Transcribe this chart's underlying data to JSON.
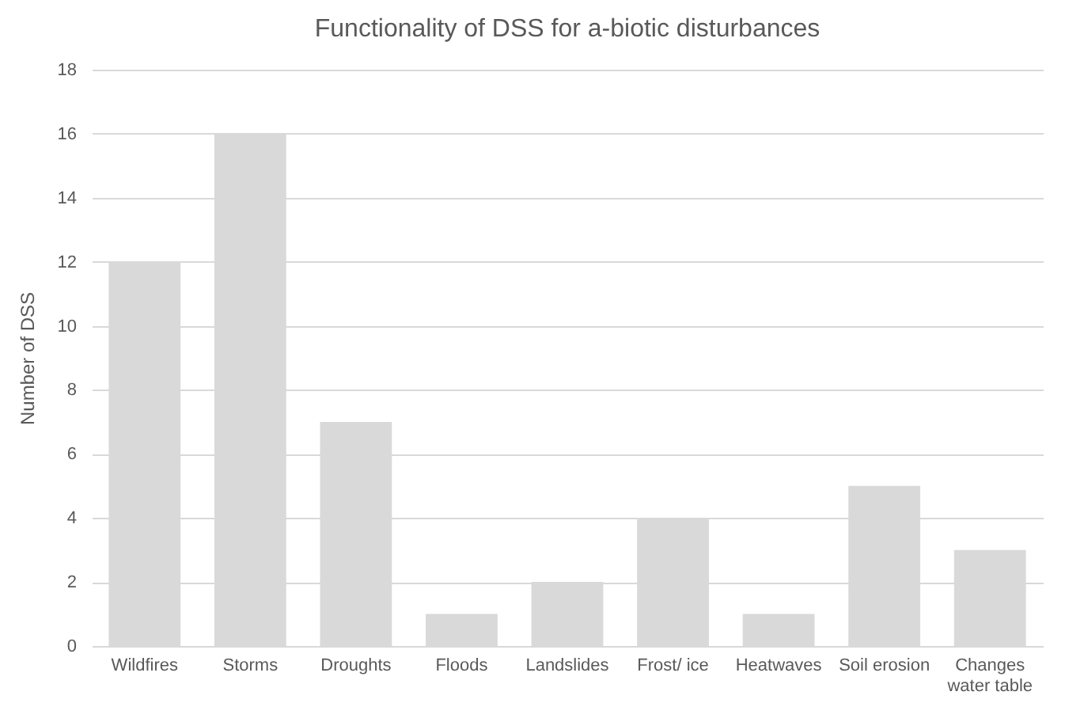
{
  "chart_data": {
    "type": "bar",
    "title": "Functionality of DSS for a-biotic disturbances",
    "ylabel": "Number of DSS",
    "categories": [
      "Wildfires",
      "Storms",
      "Droughts",
      "Floods",
      "Landslides",
      "Frost/ ice",
      "Heatwaves",
      "Soil erosion",
      "Changes water table"
    ],
    "values": [
      12,
      16,
      7,
      1,
      2,
      4,
      1,
      5,
      3
    ],
    "color": "#d9d9d9",
    "ylim": [
      0,
      18
    ],
    "yticks": [
      0,
      2,
      4,
      6,
      8,
      10,
      12,
      14,
      16,
      18
    ],
    "grid": "y"
  }
}
